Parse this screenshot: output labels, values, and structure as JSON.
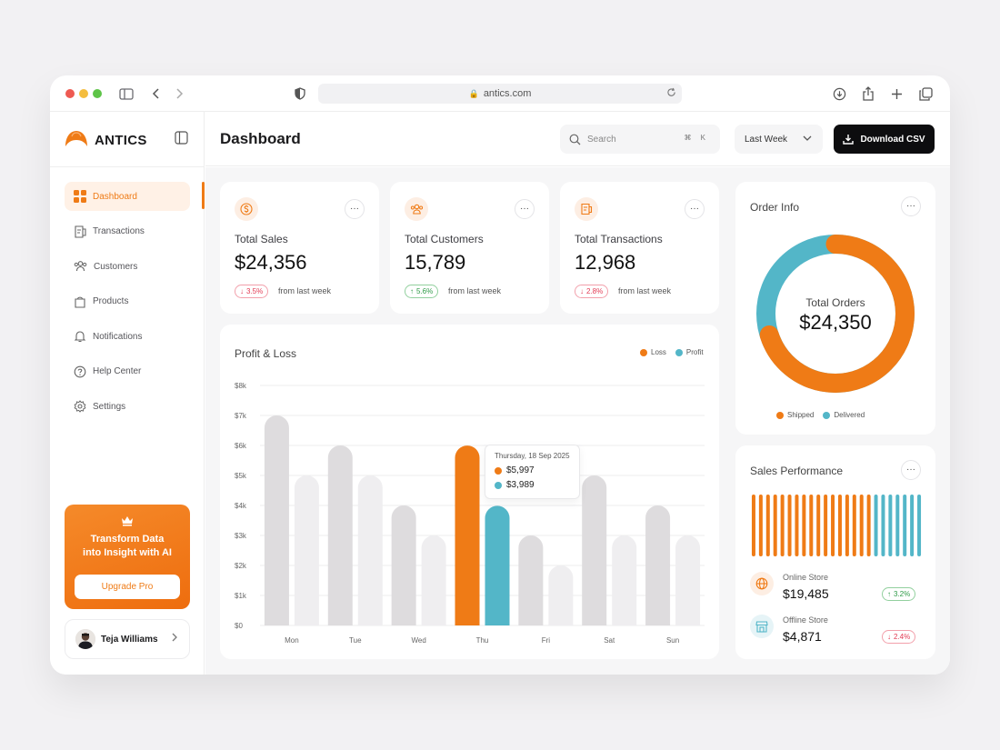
{
  "browser": {
    "url": "antics.com"
  },
  "brand": {
    "name": "ANTICS",
    "accent": "#ef7b16"
  },
  "sidebar": {
    "items": [
      {
        "label": "Dashboard",
        "icon": "grid-icon",
        "active": true
      },
      {
        "label": "Transactions",
        "icon": "receipt-icon"
      },
      {
        "label": "Customers",
        "icon": "users-icon"
      },
      {
        "label": "Products",
        "icon": "bag-icon"
      },
      {
        "label": "Notifications",
        "icon": "bell-icon"
      },
      {
        "label": "Help Center",
        "icon": "help-icon"
      },
      {
        "label": "Settings",
        "icon": "gear-icon"
      }
    ],
    "promo": {
      "title_line1": "Transform Data",
      "title_line2": "into Insight with AI",
      "button": "Upgrade Pro"
    },
    "user": {
      "name": "Teja Williams"
    }
  },
  "header": {
    "title": "Dashboard",
    "search_placeholder": "Search",
    "search_shortcut": "⌘ K",
    "range": "Last Week",
    "download_label": "Download CSV"
  },
  "stats": [
    {
      "label": "Total Sales",
      "value": "$24,356",
      "change": "3.5%",
      "direction": "down",
      "note": "from last week",
      "icon": "dollar-icon"
    },
    {
      "label": "Total Customers",
      "value": "15,789",
      "change": "5.6%",
      "direction": "up",
      "note": "from last week",
      "icon": "users-icon"
    },
    {
      "label": "Total Transactions",
      "value": "12,968",
      "change": "2.8%",
      "direction": "down",
      "note": "from last week",
      "icon": "receipt-icon"
    }
  ],
  "profit_loss": {
    "title": "Profit & Loss",
    "tooltip": {
      "date": "Thursday, 18 Sep 2025",
      "loss": "$5,997",
      "profit": "$3,989"
    }
  },
  "chart_data": {
    "type": "bar",
    "title": "Profit & Loss",
    "categories": [
      "Mon",
      "Tue",
      "Wed",
      "Thu",
      "Fri",
      "Sat",
      "Sun"
    ],
    "series": [
      {
        "name": "Loss",
        "values": [
          7000,
          6000,
          4000,
          5997,
          3000,
          5000,
          4000
        ],
        "color": "#ef7b16"
      },
      {
        "name": "Profit",
        "values": [
          5000,
          5000,
          3000,
          3989,
          2000,
          3000,
          3000
        ],
        "color": "#53b6c8"
      }
    ],
    "highlight_index": 3,
    "ylim": [
      0,
      8000
    ],
    "yticks": [
      "$0",
      "$1k",
      "$2k",
      "$3k",
      "$4k",
      "$5k",
      "$6k",
      "$7k",
      "$8k"
    ],
    "grid": true,
    "legend": "top-right"
  },
  "order_info": {
    "title": "Order Info",
    "center_label": "Total Orders",
    "center_value": "$24,350",
    "shipped_fraction": 0.7,
    "legend": [
      {
        "label": "Shipped",
        "color": "#ef7b16"
      },
      {
        "label": "Delivered",
        "color": "#53b6c8"
      }
    ]
  },
  "sales_performance": {
    "title": "Sales Performance",
    "bars": {
      "total": 24,
      "orange": 17
    },
    "stores": [
      {
        "name": "Online Store",
        "value": "$19,485",
        "change": "3.2%",
        "direction": "up",
        "icon": "globe-icon"
      },
      {
        "name": "Offline Store",
        "value": "$4,871",
        "change": "2.4%",
        "direction": "down",
        "icon": "store-icon"
      }
    ]
  }
}
